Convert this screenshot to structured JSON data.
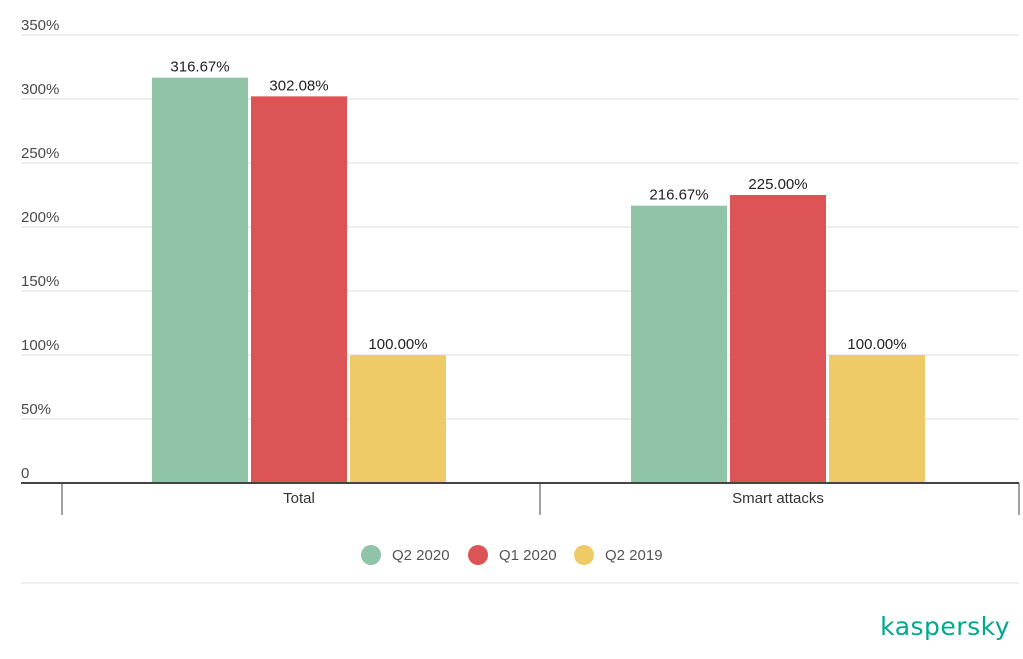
{
  "chart_data": {
    "type": "bar",
    "categories": [
      "Total",
      "Smart attacks"
    ],
    "series": [
      {
        "name": "Q2 2020",
        "color": "#8fc4a9",
        "values": [
          316.67,
          216.67
        ],
        "labels": [
          "316.67%",
          "216.67%"
        ]
      },
      {
        "name": "Q1 2020",
        "color": "#dc5455",
        "values": [
          302.08,
          225.0
        ],
        "labels": [
          "302.08%",
          "225.00%"
        ]
      },
      {
        "name": "Q2 2019",
        "color": "#efcb68",
        "values": [
          100.0,
          100.0
        ],
        "labels": [
          "100.00%",
          "100.00%"
        ]
      }
    ],
    "yticks": [
      0,
      50,
      100,
      150,
      200,
      250,
      300,
      350
    ],
    "ytick_labels": [
      "0",
      "50%",
      "100%",
      "150%",
      "200%",
      "250%",
      "300%",
      "350%"
    ],
    "ylim": [
      0,
      350
    ],
    "grid": true,
    "legend_position": "bottom-center"
  },
  "brand": {
    "name": "kaspersky",
    "color": "#00a88e"
  }
}
